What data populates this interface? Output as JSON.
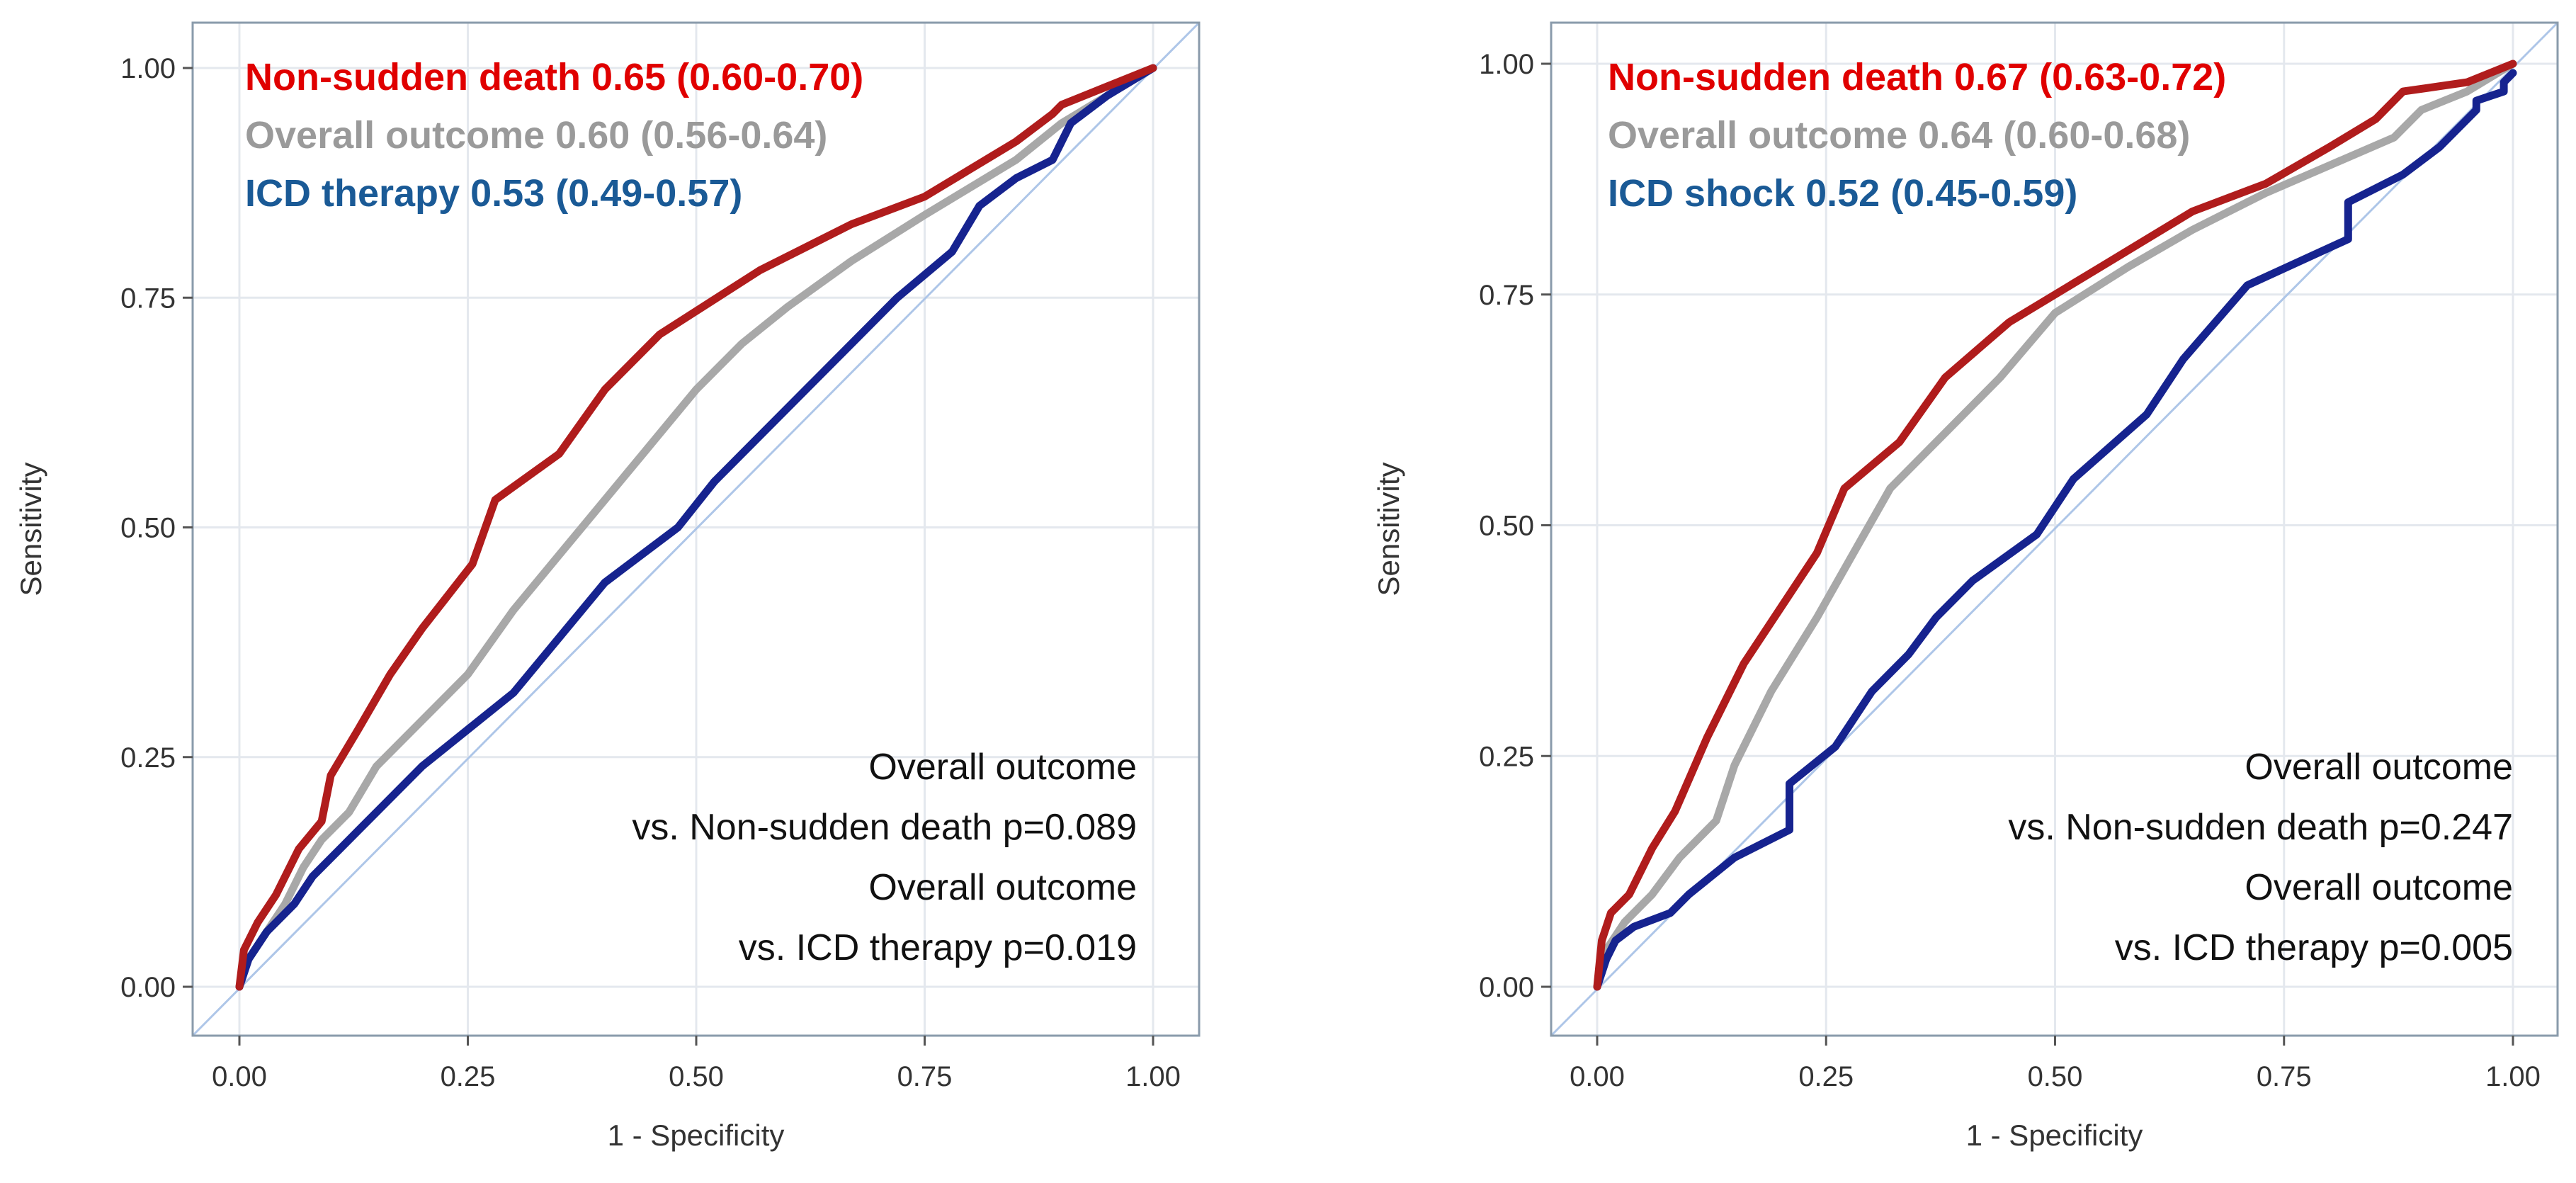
{
  "chart_data": [
    {
      "type": "line",
      "panel": "left",
      "title": "",
      "xlabel": "1 - Specificity",
      "ylabel": "Sensitivity",
      "xlim": [
        0,
        1
      ],
      "ylim": [
        0,
        1
      ],
      "xticks": [
        "0.00",
        "0.25",
        "0.50",
        "0.75",
        "1.00"
      ],
      "yticks": [
        "0.00",
        "0.25",
        "0.50",
        "0.75",
        "1.00"
      ],
      "grid": true,
      "legend_position": "top-left",
      "colors": {
        "non_sudden": "#b01c1c",
        "overall": "#a8a8a8",
        "icd": "#16238f",
        "diagonal": "#aec6e8"
      },
      "legend": [
        {
          "label": "Non-sudden death",
          "auc": "0.65",
          "ci": "(0.60-0.70)",
          "color": "#e00000"
        },
        {
          "label": "Overall outcome",
          "auc": "0.60",
          "ci": "(0.56-0.64)",
          "color": "#9a9a9a"
        },
        {
          "label": "ICD therapy",
          "auc": "0.53",
          "ci": "(0.49-0.57)",
          "color": "#1a5a96"
        }
      ],
      "annotations": [
        "Overall outcome",
        "vs. Non-sudden death p=0.089",
        "Overall outcome",
        "vs. ICD therapy p=0.019"
      ],
      "series": [
        {
          "name": "Non-sudden death",
          "key": "non_sudden",
          "x": [
            0,
            0.005,
            0.02,
            0.04,
            0.065,
            0.09,
            0.1,
            0.13,
            0.165,
            0.2,
            0.255,
            0.28,
            0.35,
            0.4,
            0.46,
            0.57,
            0.67,
            0.75,
            0.8,
            0.85,
            0.89,
            0.9,
            0.95,
            1.0
          ],
          "y": [
            0,
            0.04,
            0.07,
            0.1,
            0.15,
            0.18,
            0.23,
            0.28,
            0.34,
            0.39,
            0.46,
            0.53,
            0.58,
            0.65,
            0.71,
            0.78,
            0.83,
            0.86,
            0.89,
            0.92,
            0.95,
            0.96,
            0.98,
            1.0
          ]
        },
        {
          "name": "Overall outcome",
          "key": "overall",
          "x": [
            0,
            0.01,
            0.03,
            0.05,
            0.07,
            0.09,
            0.12,
            0.15,
            0.2,
            0.25,
            0.3,
            0.35,
            0.4,
            0.45,
            0.5,
            0.55,
            0.6,
            0.67,
            0.75,
            0.8,
            0.85,
            0.9,
            0.95,
            1.0
          ],
          "y": [
            0,
            0.03,
            0.06,
            0.09,
            0.13,
            0.16,
            0.19,
            0.24,
            0.29,
            0.34,
            0.41,
            0.47,
            0.53,
            0.59,
            0.65,
            0.7,
            0.74,
            0.79,
            0.84,
            0.87,
            0.9,
            0.94,
            0.97,
            1.0
          ]
        },
        {
          "name": "ICD therapy",
          "key": "icd",
          "x": [
            0,
            0.01,
            0.03,
            0.06,
            0.08,
            0.11,
            0.15,
            0.2,
            0.25,
            0.3,
            0.35,
            0.4,
            0.48,
            0.52,
            0.6,
            0.66,
            0.72,
            0.78,
            0.81,
            0.85,
            0.89,
            0.91,
            0.95,
            1.0
          ],
          "y": [
            0,
            0.03,
            0.06,
            0.09,
            0.12,
            0.15,
            0.19,
            0.24,
            0.28,
            0.32,
            0.38,
            0.44,
            0.5,
            0.55,
            0.63,
            0.69,
            0.75,
            0.8,
            0.85,
            0.88,
            0.9,
            0.94,
            0.97,
            1.0
          ]
        }
      ]
    },
    {
      "type": "line",
      "panel": "right",
      "title": "",
      "xlabel": "1 - Specificity",
      "ylabel": "Sensitivity",
      "xlim": [
        0,
        1
      ],
      "ylim": [
        0,
        1
      ],
      "xticks": [
        "0.00",
        "0.25",
        "0.50",
        "0.75",
        "1.00"
      ],
      "yticks": [
        "0.00",
        "0.25",
        "0.50",
        "0.75",
        "1.00"
      ],
      "grid": true,
      "legend_position": "top-left",
      "colors": {
        "non_sudden": "#b01c1c",
        "overall": "#a8a8a8",
        "icd": "#16238f",
        "diagonal": "#aec6e8"
      },
      "legend": [
        {
          "label": "Non-sudden death",
          "auc": "0.67",
          "ci": "(0.63-0.72)",
          "color": "#e00000"
        },
        {
          "label": "Overall outcome",
          "auc": "0.64",
          "ci": "(0.60-0.68)",
          "color": "#9a9a9a"
        },
        {
          "label": "ICD shock",
          "auc": "0.52",
          "ci": "(0.45-0.59)",
          "color": "#1a5a96"
        }
      ],
      "annotations": [
        "Overall outcome",
        "vs. Non-sudden death p=0.247",
        "Overall outcome",
        "vs. ICD therapy p=0.005"
      ],
      "series": [
        {
          "name": "Non-sudden death",
          "key": "non_sudden",
          "x": [
            0,
            0.005,
            0.015,
            0.035,
            0.06,
            0.085,
            0.12,
            0.16,
            0.2,
            0.24,
            0.27,
            0.33,
            0.38,
            0.45,
            0.55,
            0.65,
            0.73,
            0.8,
            0.85,
            0.88,
            0.95,
            1.0
          ],
          "y": [
            0,
            0.05,
            0.08,
            0.1,
            0.15,
            0.19,
            0.27,
            0.35,
            0.41,
            0.47,
            0.54,
            0.59,
            0.66,
            0.72,
            0.78,
            0.84,
            0.87,
            0.91,
            0.94,
            0.97,
            0.98,
            1.0
          ]
        },
        {
          "name": "Overall outcome",
          "key": "overall",
          "x": [
            0,
            0.01,
            0.03,
            0.06,
            0.09,
            0.13,
            0.15,
            0.19,
            0.24,
            0.28,
            0.32,
            0.38,
            0.44,
            0.5,
            0.58,
            0.65,
            0.73,
            0.8,
            0.87,
            0.9,
            0.95,
            1.0
          ],
          "y": [
            0,
            0.04,
            0.07,
            0.1,
            0.14,
            0.18,
            0.24,
            0.32,
            0.4,
            0.47,
            0.54,
            0.6,
            0.66,
            0.73,
            0.78,
            0.82,
            0.86,
            0.89,
            0.92,
            0.95,
            0.97,
            1.0
          ]
        },
        {
          "name": "ICD shock",
          "key": "icd",
          "x": [
            0,
            0.01,
            0.02,
            0.04,
            0.08,
            0.1,
            0.15,
            0.21,
            0.21,
            0.26,
            0.3,
            0.34,
            0.37,
            0.41,
            0.48,
            0.52,
            0.6,
            0.64,
            0.71,
            0.82,
            0.82,
            0.88,
            0.92,
            0.96,
            0.96,
            0.99,
            0.99,
            1.0
          ],
          "y": [
            0,
            0.03,
            0.05,
            0.065,
            0.08,
            0.1,
            0.14,
            0.17,
            0.22,
            0.26,
            0.32,
            0.36,
            0.4,
            0.44,
            0.49,
            0.55,
            0.62,
            0.68,
            0.76,
            0.81,
            0.85,
            0.88,
            0.91,
            0.95,
            0.96,
            0.97,
            0.98,
            0.99
          ]
        }
      ]
    }
  ]
}
